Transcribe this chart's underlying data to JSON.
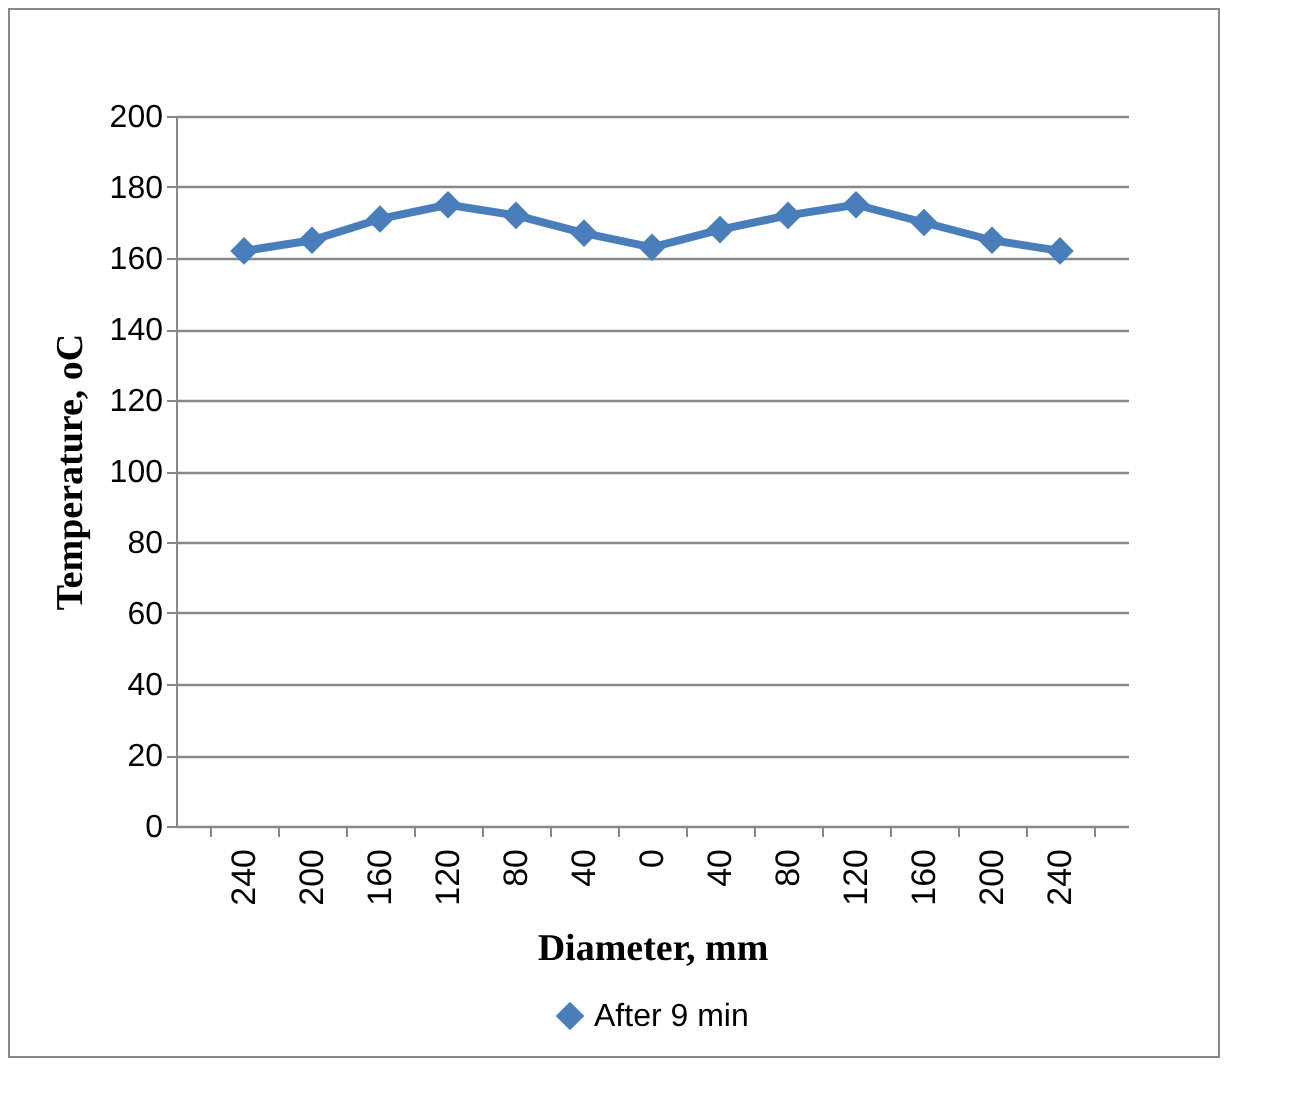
{
  "chart_data": {
    "type": "line",
    "xlabel": "Diameter, mm",
    "ylabel": "Temperature, oC",
    "categories": [
      "240",
      "200",
      "160",
      "120",
      "80",
      "40",
      "0",
      "40",
      "80",
      "120",
      "160",
      "200",
      "240"
    ],
    "series": [
      {
        "name": "After 9 min",
        "color": "#4a7ebb",
        "values": [
          162,
          165,
          171,
          175,
          172,
          167,
          163,
          168,
          172,
          175,
          170,
          165,
          162
        ]
      }
    ],
    "ylim": [
      0,
      200
    ],
    "yticks": [
      0,
      20,
      40,
      60,
      80,
      100,
      120,
      140,
      160,
      180,
      200
    ],
    "grid": "y",
    "legend": "bottom",
    "marker": "diamond",
    "line_style": "solid"
  }
}
